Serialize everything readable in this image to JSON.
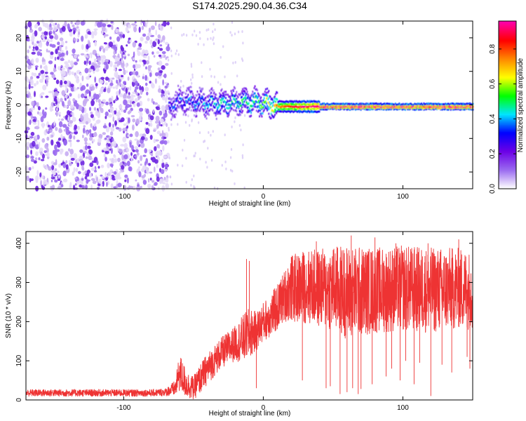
{
  "title": "S174.2025.290.04.36.C34",
  "chart_data": [
    {
      "type": "heatmap",
      "xlabel": "Height of straight line (km)",
      "ylabel": "Frequency (Hz)",
      "xlim": [
        -170,
        150
      ],
      "ylim": [
        -25,
        25
      ],
      "x_ticks": [
        -100,
        0,
        100
      ],
      "y_ticks": [
        -20,
        -10,
        0,
        10,
        20
      ],
      "noise_region_x": [
        -170,
        -68
      ],
      "signal_track": {
        "x": [
          -68,
          -60,
          -50,
          -40,
          -30,
          -20,
          -10,
          0,
          10,
          20,
          30,
          40,
          60,
          80,
          100,
          120,
          150
        ],
        "freq_hz": [
          -1,
          1.5,
          1,
          0.5,
          0.5,
          1,
          1,
          0.5,
          -0.5,
          -0.5,
          -0.5,
          -0.5,
          -0.5,
          -0.5,
          -0.5,
          -0.5,
          -0.5
        ],
        "amplitude": [
          0.3,
          0.35,
          0.35,
          0.4,
          0.45,
          0.45,
          0.5,
          0.55,
          0.75,
          0.85,
          0.9,
          0.93,
          0.95,
          0.95,
          0.95,
          0.95,
          0.95
        ]
      },
      "colorbar": {
        "label": "Normalized spectral amplitude",
        "ticks": [
          0.0,
          0.2,
          0.4,
          0.6,
          0.8
        ],
        "tick_labels": [
          "0.0",
          "0.2",
          "0.4",
          "0.6",
          "0.8"
        ],
        "range": [
          0,
          0.96
        ],
        "colors": [
          "#ffffff",
          "#9a6af0",
          "#6c00e6",
          "#0000ff",
          "#00e5ff",
          "#00ff00",
          "#ffff00",
          "#ff8800",
          "#ff0000",
          "#ff00aa"
        ]
      }
    },
    {
      "type": "line",
      "xlabel": "Height of straight line (km)",
      "ylabel": "SNR (10 * v/v)",
      "xlim": [
        -170,
        150
      ],
      "ylim": [
        0,
        430
      ],
      "x_ticks": [
        -100,
        0,
        100
      ],
      "y_ticks": [
        0,
        100,
        200,
        300,
        400
      ],
      "color": "#ee3333",
      "x": [
        -170,
        -150,
        -120,
        -100,
        -80,
        -70,
        -63,
        -60,
        -55,
        -50,
        -45,
        -40,
        -30,
        -20,
        -15,
        -10,
        -5,
        0,
        5,
        10,
        15,
        20,
        25,
        30,
        40,
        50,
        60,
        80,
        100,
        120,
        140,
        150
      ],
      "mean": [
        18,
        18,
        18,
        18,
        18,
        20,
        30,
        70,
        40,
        30,
        55,
        80,
        120,
        145,
        155,
        170,
        175,
        200,
        215,
        235,
        265,
        285,
        285,
        290,
        285,
        285,
        275,
        280,
        285,
        280,
        285,
        280
      ],
      "spread": [
        9,
        9,
        9,
        9,
        9,
        10,
        20,
        50,
        35,
        30,
        38,
        40,
        40,
        45,
        60,
        65,
        50,
        50,
        55,
        60,
        65,
        85,
        90,
        95,
        100,
        110,
        120,
        110,
        110,
        110,
        105,
        100
      ],
      "spikes": [
        [
          -12,
          360
        ],
        [
          -10,
          355
        ],
        [
          -5,
          30
        ],
        [
          28,
          50
        ],
        [
          45,
          30
        ],
        [
          48,
          35
        ],
        [
          55,
          15
        ],
        [
          60,
          20
        ],
        [
          64,
          30
        ],
        [
          68,
          15
        ],
        [
          70,
          28
        ],
        [
          78,
          40
        ],
        [
          88,
          60
        ],
        [
          92,
          80
        ],
        [
          98,
          50
        ],
        [
          102,
          100
        ],
        [
          108,
          40
        ],
        [
          112,
          95
        ],
        [
          120,
          10
        ],
        [
          128,
          90
        ],
        [
          135,
          70
        ],
        [
          140,
          410
        ],
        [
          146,
          110
        ],
        [
          148,
          80
        ],
        [
          63,
          420
        ],
        [
          80,
          415
        ],
        [
          95,
          400
        ],
        [
          38,
          405
        ],
        [
          118,
          400
        ]
      ]
    }
  ]
}
